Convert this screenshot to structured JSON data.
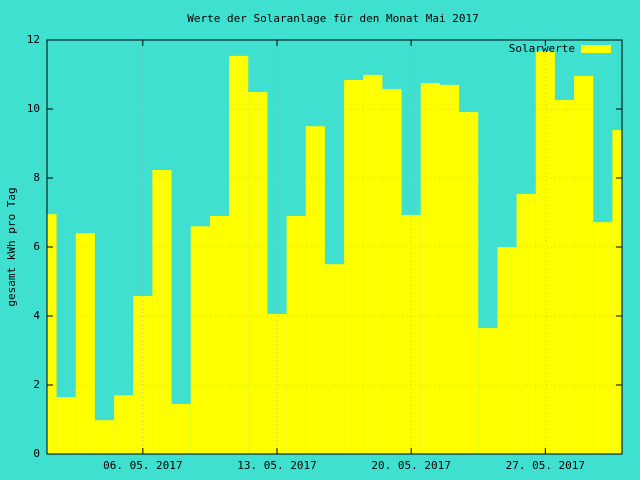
{
  "chart_data": {
    "type": "bar",
    "title": "Werte der Solaranlage für den Monat Mai 2017",
    "y_label": "gesamt kWh pro Tag",
    "categories": [
      null,
      null,
      null,
      null,
      null,
      "06. 05. 2017",
      null,
      null,
      null,
      null,
      null,
      null,
      "13. 05. 2017",
      null,
      null,
      null,
      null,
      null,
      null,
      "20. 05. 2017",
      null,
      null,
      null,
      null,
      null,
      null,
      "27. 05. 2017",
      null,
      null,
      null,
      null
    ],
    "series": [
      {
        "name": "Solarwerte",
        "color": "#ffff00",
        "values": [
          6.95,
          1.65,
          6.4,
          0.98,
          1.7,
          4.58,
          8.23,
          1.45,
          6.6,
          6.9,
          11.54,
          10.49,
          4.06,
          6.9,
          9.5,
          5.5,
          10.84,
          10.99,
          10.58,
          6.93,
          10.75,
          10.7,
          9.91,
          3.65,
          6.0,
          7.54,
          11.68,
          10.26,
          10.96,
          6.72,
          9.39
        ]
      }
    ],
    "ylim": [
      0,
      12
    ],
    "yticks": [
      0,
      2,
      4,
      6,
      8,
      10,
      12
    ],
    "grid": true,
    "legend": "top-right"
  }
}
